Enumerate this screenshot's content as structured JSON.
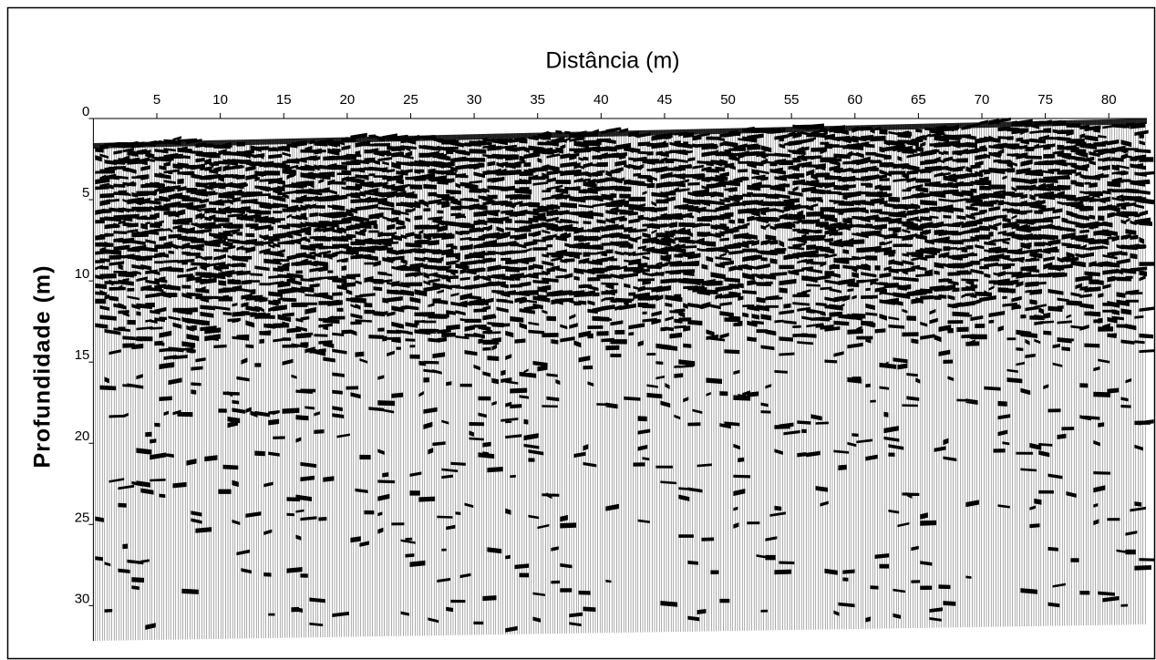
{
  "chart_data": {
    "type": "radargram",
    "title": "Distância (m)",
    "y_label": "Profundidade (m)",
    "xlim": [
      0,
      83
    ],
    "xticks": [
      5,
      10,
      15,
      20,
      25,
      30,
      35,
      40,
      45,
      50,
      55,
      60,
      65,
      70,
      75,
      80
    ],
    "ylim": [
      0,
      32
    ],
    "yticks": [
      0,
      5,
      10,
      15,
      20,
      25,
      30
    ],
    "y_inverted": true,
    "x_axis_position": "top"
  }
}
